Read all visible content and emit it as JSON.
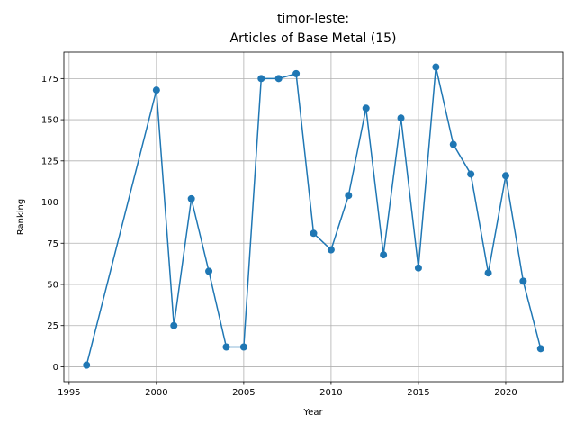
{
  "chart_data": {
    "type": "line",
    "title_line1": "timor-leste:",
    "title_line2": "Articles of Base Metal (15)",
    "xlabel": "Year",
    "ylabel": "Ranking",
    "xlim": [
      1994.7,
      2023.3
    ],
    "ylim": [
      -9.05,
      191.05
    ],
    "xticks": [
      1995,
      2000,
      2005,
      2010,
      2015,
      2020
    ],
    "yticks": [
      0,
      25,
      50,
      75,
      100,
      125,
      150,
      175
    ],
    "grid": true,
    "color": "#1f77b4",
    "series": [
      {
        "x": [
          1996,
          2000,
          2001,
          2002,
          2003,
          2004,
          2005,
          2006,
          2007,
          2008,
          2009,
          2010,
          2011,
          2012,
          2013,
          2014,
          2015,
          2016,
          2017,
          2018,
          2019,
          2020,
          2021,
          2022
        ],
        "y": [
          1,
          168,
          25,
          102,
          58,
          12,
          12,
          175,
          175,
          178,
          81,
          71,
          104,
          157,
          68,
          151,
          60,
          182,
          135,
          117,
          57,
          116,
          52,
          11
        ]
      }
    ]
  }
}
